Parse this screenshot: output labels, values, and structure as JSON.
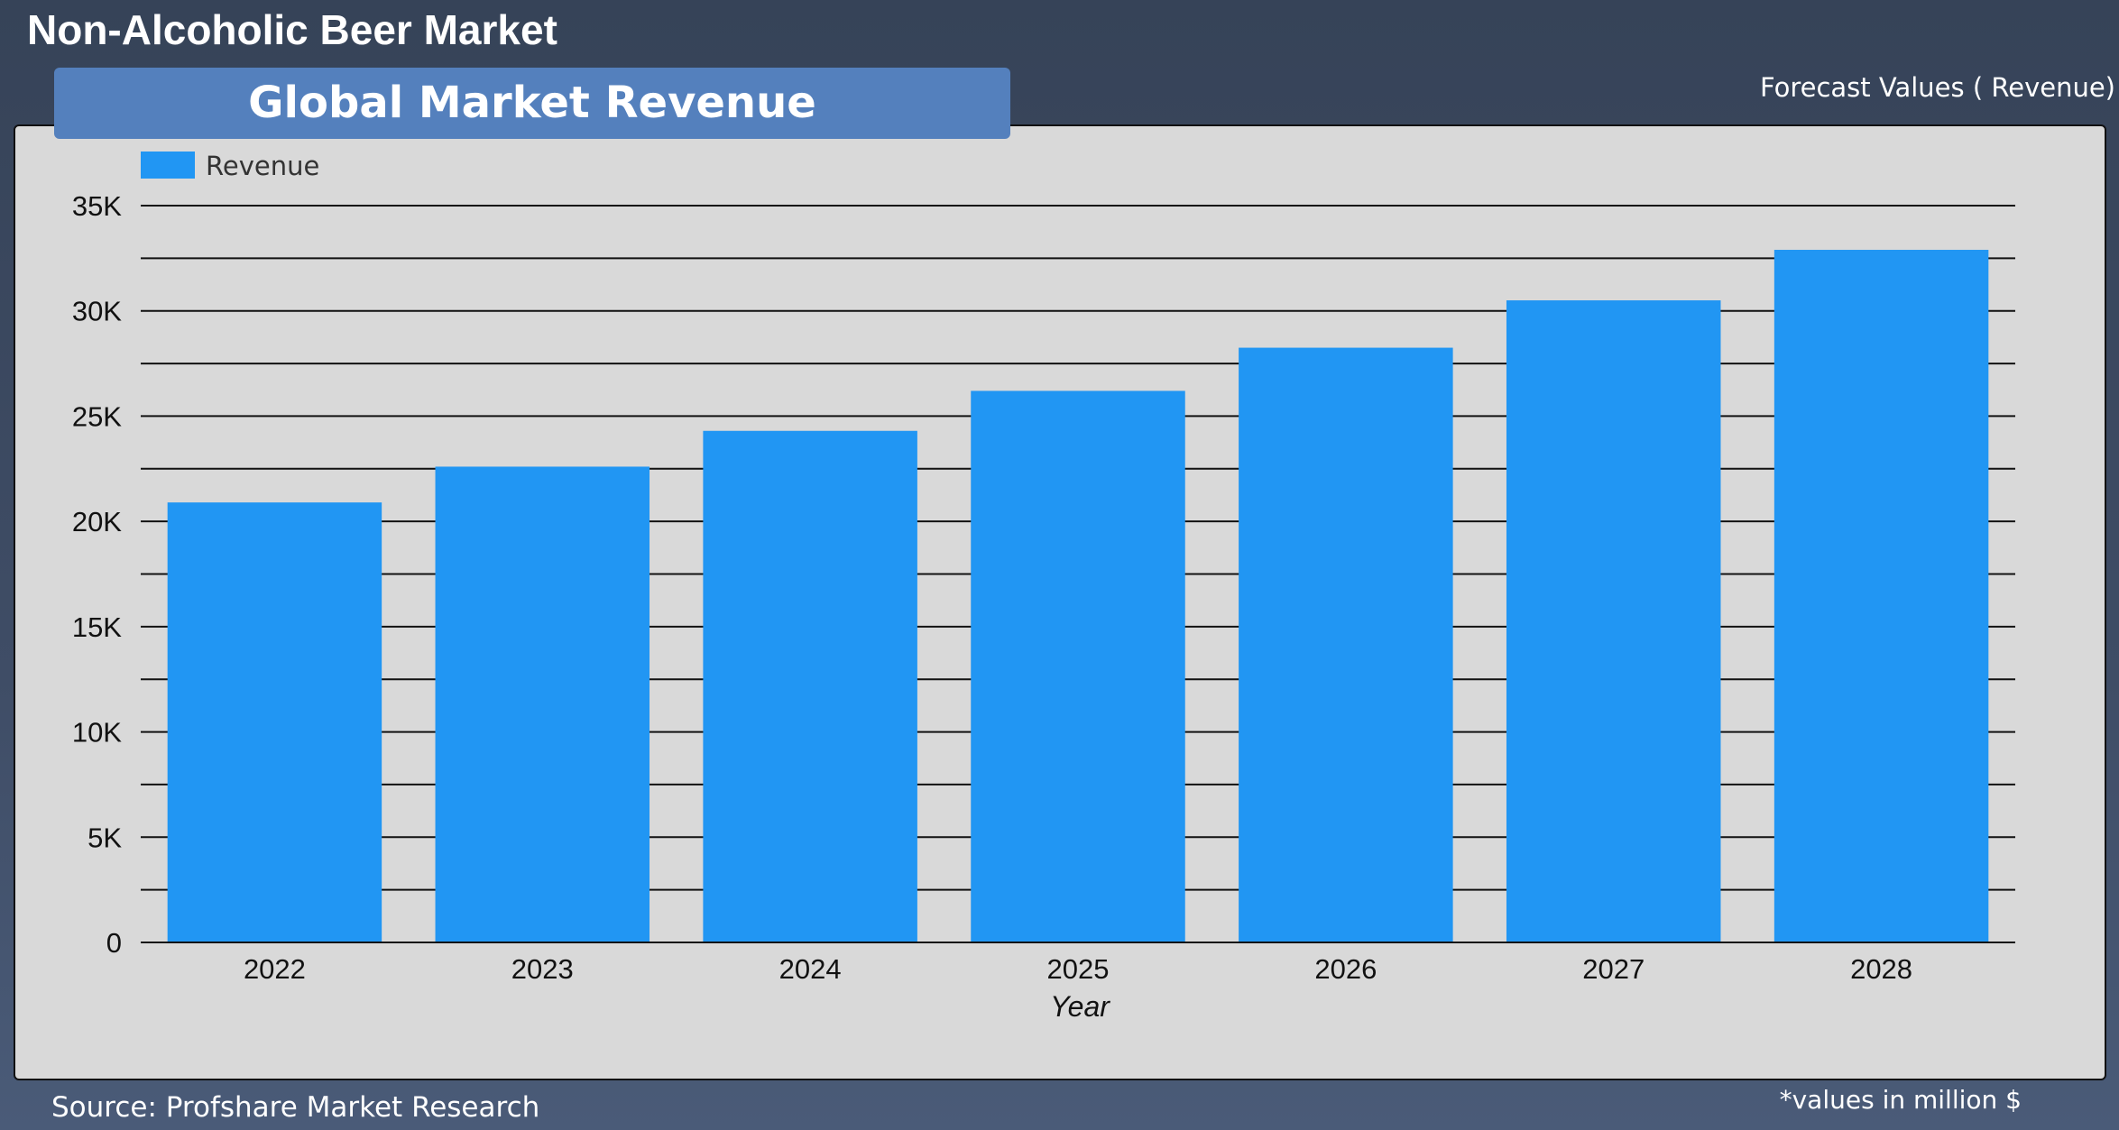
{
  "header": {
    "title": "Non-Alcoholic Beer Market",
    "forecast_note": "Forecast Values ( Revenue)"
  },
  "footer": {
    "source": "Source: Profshare Market Research",
    "unit_note": "*values in million $"
  },
  "colors": {
    "bar": "#2196f3",
    "panel": "#d9d9d9",
    "heading": "#5480bd"
  },
  "chart_data": {
    "type": "bar",
    "title": "Global Market Revenue",
    "xlabel": "Year",
    "ylabel": "",
    "categories": [
      "2022",
      "2023",
      "2024",
      "2025",
      "2026",
      "2027",
      "2028"
    ],
    "series": [
      {
        "name": "Revenue",
        "values": [
          20900,
          22600,
          24300,
          26200,
          28250,
          30500,
          32900
        ]
      }
    ],
    "ylim": [
      0,
      35000
    ],
    "yticks": [
      0,
      5000,
      10000,
      15000,
      20000,
      25000,
      30000,
      35000
    ],
    "ytick_labels": [
      "0",
      "5K",
      "10K",
      "15K",
      "20K",
      "25K",
      "30K",
      "35K"
    ],
    "grid": true,
    "legend": "top-left"
  }
}
